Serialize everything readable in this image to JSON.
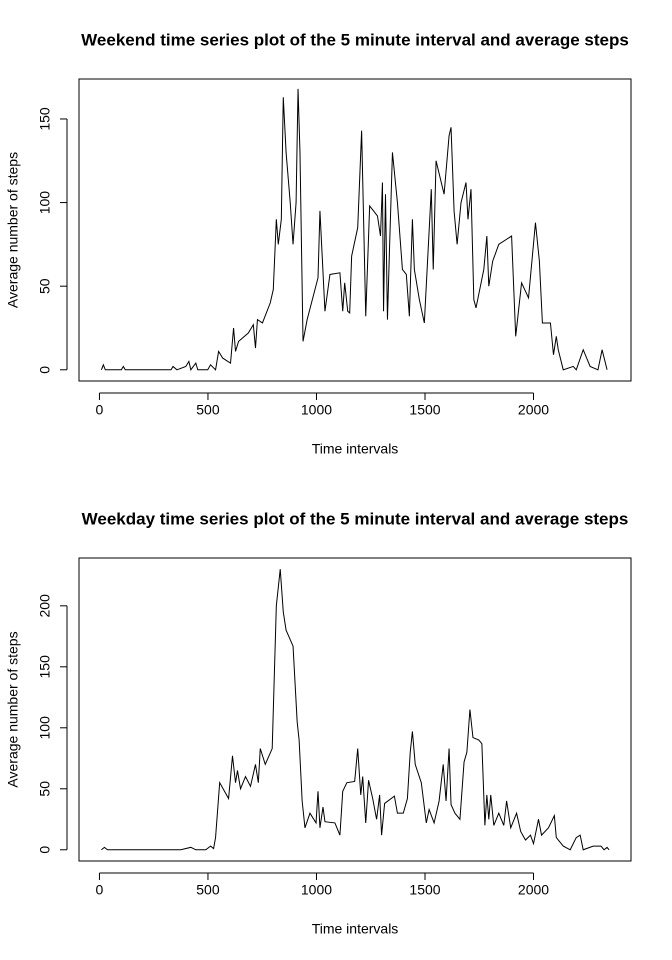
{
  "chart_data": [
    {
      "type": "line",
      "title": "Weekend time series plot of the 5 minute interval and average steps",
      "x_label": "Time intervals",
      "y_label": "Average number of steps",
      "color": "#000000",
      "x": [
        9,
        18,
        27,
        101,
        110,
        119,
        330,
        339,
        357,
        398,
        412,
        421,
        444,
        453,
        499,
        512,
        535,
        549,
        568,
        604,
        618,
        627,
        641,
        686,
        709,
        719,
        728,
        751,
        787,
        801,
        815,
        824,
        838,
        847,
        860,
        879,
        892,
        906,
        915,
        924,
        938,
        957,
        1007,
        1016,
        1039,
        1062,
        1108,
        1121,
        1130,
        1144,
        1153,
        1162,
        1190,
        1208,
        1227,
        1245,
        1281,
        1295,
        1304,
        1309,
        1318,
        1327,
        1336,
        1350,
        1373,
        1396,
        1414,
        1428,
        1442,
        1451,
        1474,
        1497,
        1529,
        1538,
        1551,
        1588,
        1611,
        1620,
        1634,
        1648,
        1666,
        1689,
        1698,
        1712,
        1725,
        1735,
        1771,
        1785,
        1794,
        1812,
        1840,
        1899,
        1918,
        1945,
        1977,
        2009,
        2027,
        2041,
        2078,
        2092,
        2105,
        2114,
        2137,
        2183,
        2197,
        2229,
        2261,
        2297,
        2316,
        2339
      ],
      "values": [
        0,
        3,
        0,
        0,
        2,
        0,
        0,
        2,
        0,
        2,
        5,
        0,
        4,
        0,
        0,
        3,
        0,
        11,
        7,
        4,
        25,
        11,
        17,
        22,
        27,
        13,
        30,
        28,
        40,
        48,
        90,
        75,
        90,
        163,
        130,
        100,
        75,
        100,
        168,
        130,
        17,
        30,
        55,
        95,
        35,
        57,
        58,
        35,
        52,
        35,
        34,
        68,
        85,
        143,
        32,
        98,
        92,
        80,
        112,
        35,
        105,
        30,
        70,
        130,
        100,
        60,
        57,
        32,
        90,
        60,
        42,
        28,
        108,
        60,
        125,
        105,
        140,
        145,
        95,
        75,
        100,
        112,
        90,
        108,
        42,
        37,
        60,
        80,
        50,
        65,
        75,
        80,
        20,
        52,
        43,
        88,
        65,
        28,
        28,
        9,
        20,
        12,
        0,
        2,
        0,
        12,
        2,
        0,
        12,
        0
      ],
      "xlim": [
        -94.2,
        2449.2
      ],
      "ylim": [
        -6.7,
        173.9
      ],
      "xticks": [
        0,
        500,
        1000,
        1500,
        2000
      ],
      "yticks": [
        0,
        50,
        100,
        150
      ]
    },
    {
      "type": "line",
      "title": "Weekday time series plot of the 5 minute interval and average steps",
      "x_label": "Time intervals",
      "y_label": "Average number of steps",
      "color": "#000000",
      "x": [
        9,
        23,
        37,
        238,
        375,
        421,
        444,
        490,
        512,
        526,
        535,
        554,
        595,
        613,
        627,
        636,
        650,
        673,
        696,
        719,
        732,
        741,
        764,
        796,
        815,
        833,
        847,
        860,
        892,
        911,
        920,
        934,
        947,
        970,
        998,
        1007,
        1016,
        1030,
        1039,
        1085,
        1108,
        1121,
        1140,
        1176,
        1190,
        1204,
        1213,
        1227,
        1240,
        1259,
        1277,
        1291,
        1300,
        1314,
        1359,
        1373,
        1400,
        1419,
        1432,
        1442,
        1455,
        1483,
        1506,
        1519,
        1542,
        1565,
        1584,
        1597,
        1611,
        1620,
        1638,
        1661,
        1680,
        1693,
        1707,
        1721,
        1748,
        1762,
        1776,
        1785,
        1794,
        1803,
        1817,
        1840,
        1863,
        1876,
        1895,
        1922,
        1941,
        1963,
        1986,
        2000,
        2023,
        2037,
        2069,
        2096,
        2105,
        2137,
        2169,
        2197,
        2215,
        2229,
        2275,
        2311,
        2325,
        2339,
        2348
      ],
      "values": [
        0,
        2,
        0,
        0,
        0,
        2,
        0,
        0,
        3,
        1,
        10,
        55,
        42,
        77,
        55,
        65,
        50,
        60,
        52,
        70,
        55,
        83,
        70,
        83,
        200,
        230,
        195,
        180,
        167,
        105,
        90,
        40,
        18,
        30,
        22,
        48,
        18,
        35,
        23,
        22,
        12,
        48,
        55,
        56,
        83,
        45,
        60,
        22,
        57,
        42,
        25,
        45,
        12,
        38,
        44,
        30,
        30,
        42,
        80,
        97,
        70,
        55,
        22,
        33,
        22,
        40,
        70,
        40,
        83,
        37,
        30,
        25,
        72,
        80,
        115,
        92,
        90,
        87,
        20,
        45,
        25,
        45,
        20,
        30,
        20,
        40,
        18,
        30,
        15,
        8,
        12,
        5,
        25,
        12,
        18,
        28,
        10,
        3,
        0,
        10,
        12,
        0,
        3,
        3,
        0,
        2,
        0
      ],
      "xlim": [
        -94.2,
        2449.2
      ],
      "ylim": [
        -9.2,
        239.2
      ],
      "xticks": [
        0,
        500,
        1000,
        1500,
        2000
      ],
      "yticks": [
        0,
        50,
        100,
        150,
        200
      ]
    }
  ]
}
